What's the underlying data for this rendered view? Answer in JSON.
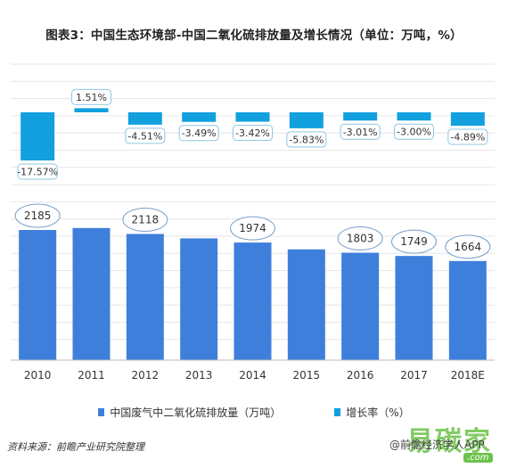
{
  "title": "图表3：中国生态环境部-中国二氧化硫排放量及增长情况（单位：万吨，%）",
  "legend": {
    "emissions": "中国废气中二氧化硫排放量（万吨）",
    "growth": "增长率（%）"
  },
  "source": "资料来源：前瞻产业研究院整理",
  "brand": "@前瞻经济学人APP",
  "site_logo": "易碳家",
  "site_domain": ".com",
  "colors": {
    "bar": "#3f7fdc",
    "growth_bar": "#12a0de",
    "ellipse_stroke": "#7aa0c8",
    "label_stroke": "#8fc6e3",
    "grid": "#e6e6e6"
  },
  "chart_data": [
    {
      "type": "bar",
      "name": "中国废气中二氧化硫排放量（万吨）",
      "categories": [
        "2010",
        "2011",
        "2012",
        "2013",
        "2014",
        "2015",
        "2016",
        "2017",
        "2018E"
      ],
      "values": [
        2185,
        2218,
        2118,
        2044,
        1974,
        1859,
        1803,
        1749,
        1664
      ],
      "data_labels": [
        {
          "category": "2010",
          "text": "2185"
        },
        {
          "category": "2012",
          "text": "2118"
        },
        {
          "category": "2014",
          "text": "1974"
        },
        {
          "category": "2016",
          "text": "1803"
        },
        {
          "category": "2017",
          "text": "1749"
        },
        {
          "category": "2018E",
          "text": "1664"
        }
      ],
      "ylim": [
        0,
        2500
      ]
    },
    {
      "type": "bar",
      "name": "增长率（%）",
      "categories": [
        "2010",
        "2011",
        "2012",
        "2013",
        "2014",
        "2015",
        "2016",
        "2017",
        "2018E"
      ],
      "values": [
        -17.57,
        1.51,
        -4.51,
        -3.49,
        -3.42,
        -5.83,
        -3.01,
        -3.0,
        -4.89
      ],
      "labels": [
        "-17.57%",
        "1.51%",
        "-4.51%",
        "-3.49%",
        "-3.42%",
        "-5.83%",
        "-3.01%",
        "-3.00%",
        "-4.89%"
      ],
      "ylim": [
        -20,
        3
      ]
    }
  ]
}
